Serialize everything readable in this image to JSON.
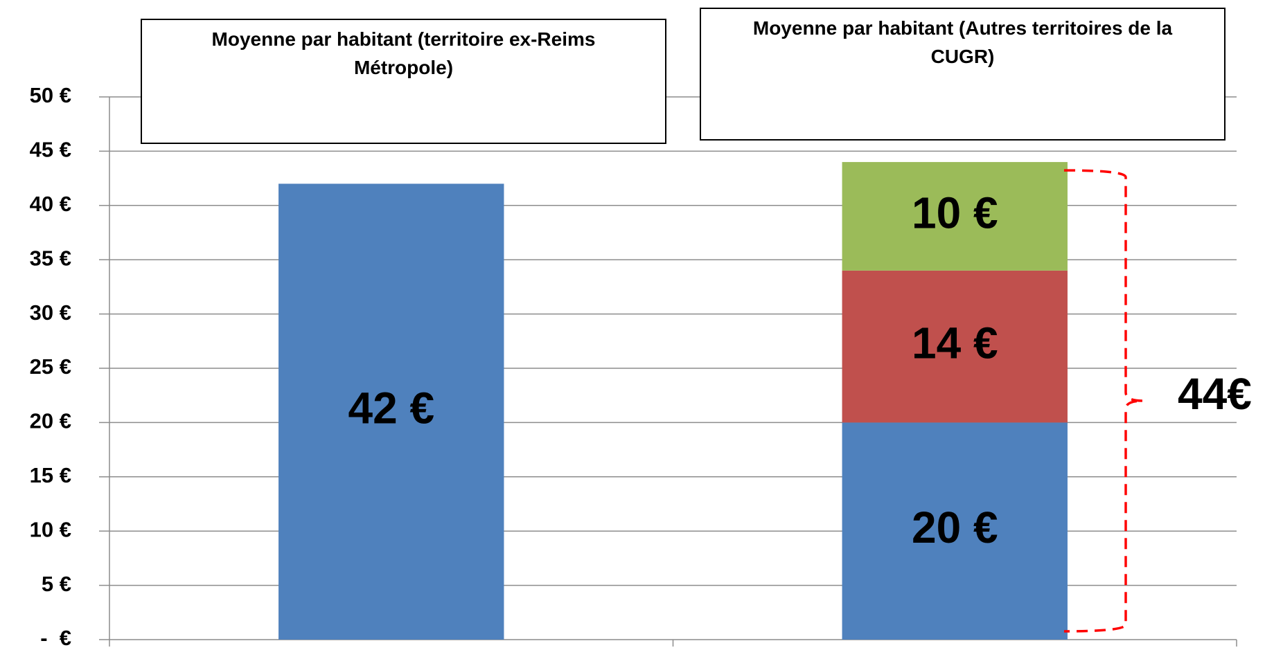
{
  "chart_data": {
    "type": "stacked_bar",
    "categories": [
      "Moyenne par habitant (territoire ex-Reims Métropole)",
      "Moyenne par habitant (Autres territoires de la CUGR)"
    ],
    "series": [
      {
        "color": "#4f81bd",
        "values": [
          42,
          20
        ],
        "value_labels": [
          "42 €",
          "20 €"
        ]
      },
      {
        "color": "#c0504d",
        "values": [
          null,
          14
        ],
        "value_labels": [
          null,
          "14 €"
        ]
      },
      {
        "color": "#9bbb59",
        "values": [
          null,
          10
        ],
        "value_labels": [
          null,
          "10 €"
        ]
      }
    ],
    "ylim": [
      0,
      50
    ],
    "yticks": [
      {
        "value": 0,
        "label": "-  €"
      },
      {
        "value": 5,
        "label": "5 €"
      },
      {
        "value": 10,
        "label": "10 €"
      },
      {
        "value": 15,
        "label": "15 €"
      },
      {
        "value": 20,
        "label": "20 €"
      },
      {
        "value": 25,
        "label": "25 €"
      },
      {
        "value": 30,
        "label": "30 €"
      },
      {
        "value": 35,
        "label": "35 €"
      },
      {
        "value": 40,
        "label": "40 €"
      },
      {
        "value": 45,
        "label": "45 €"
      },
      {
        "value": 50,
        "label": "50 €"
      }
    ],
    "grid": true,
    "annotations": [
      {
        "value": 44,
        "label": "44€",
        "color": "#ff0000"
      }
    ]
  }
}
